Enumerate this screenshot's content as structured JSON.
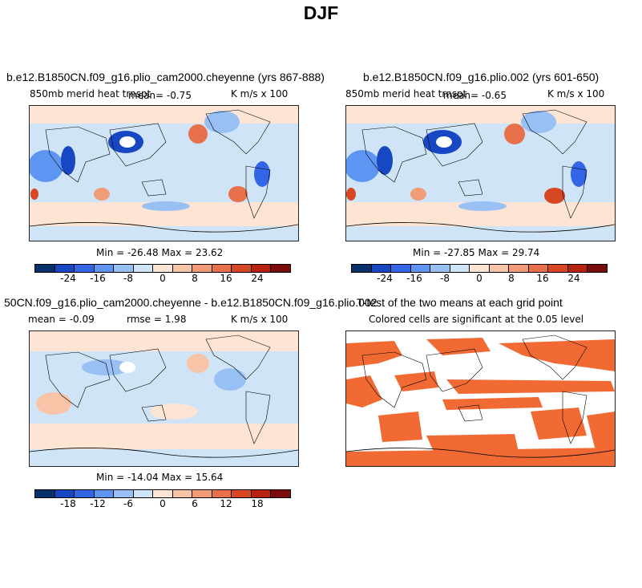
{
  "page_title": "DJF",
  "colors": {
    "palette": [
      "#08306b",
      "#1847c4",
      "#3366e6",
      "#5f95f2",
      "#98c0f5",
      "#cfe4f7",
      "#fde4d4",
      "#f7c4a7",
      "#f19c76",
      "#e8704a",
      "#d84723",
      "#b5220f",
      "#7a0c0c"
    ],
    "ttest_fill": "#f26a33"
  },
  "chart_data": [
    {
      "type": "heatmap",
      "title": "b.e12.B1850CN.f09_g16.plio_cam2000.cheyenne (yrs 867-888)",
      "variable": "850mb merid heat trnspt",
      "mean_text": "mean=   -0.75",
      "units": "K m/s x 100",
      "stats_text": "Min = -26.48 Max =  23.62",
      "colorbar": {
        "ticks": [
          "-24",
          "-16",
          "-8",
          "0",
          "8",
          "16",
          "24"
        ],
        "range": [
          -28,
          28
        ]
      }
    },
    {
      "type": "heatmap",
      "title": "b.e12.B1850CN.f09_g16.plio.002 (yrs 601-650)",
      "variable": "850mb merid heat trnspt",
      "mean_text": "mean=   -0.65",
      "units": "K m/s x 100",
      "stats_text": "Min = -27.85 Max =  29.74",
      "colorbar": {
        "ticks": [
          "-24",
          "-16",
          "-8",
          "0",
          "8",
          "16",
          "24"
        ],
        "range": [
          -28,
          28
        ]
      }
    },
    {
      "type": "heatmap",
      "title": "50CN.f09_g16.plio_cam2000.cheyenne - b.e12.B1850CN.f09_g16.plio.002",
      "mean_text": "mean =  -0.09",
      "rmse_text": "rmse =   1.98",
      "units": "K m/s x 100",
      "stats_text": "Min = -14.04 Max =  15.64",
      "colorbar": {
        "ticks": [
          "-18",
          "-12",
          "-6",
          "0",
          "6",
          "12",
          "18"
        ],
        "range": [
          -21,
          21
        ]
      }
    },
    {
      "type": "heatmap",
      "title": "T-test of the two means at each grid point",
      "subtitle": "Colored cells are significant at the 0.05 level",
      "significance_level": 0.05
    }
  ]
}
